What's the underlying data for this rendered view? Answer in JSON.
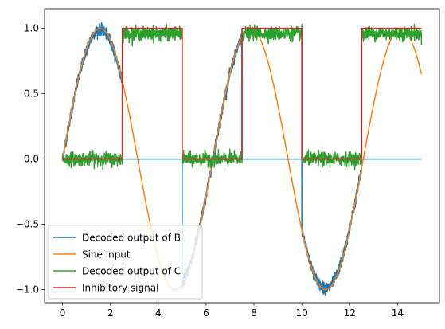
{
  "chart_data": {
    "type": "line",
    "title": "",
    "xlabel": "",
    "ylabel": "",
    "xlim": [
      -0.75,
      15.75
    ],
    "ylim": [
      -1.1,
      1.15
    ],
    "xticks": [
      0,
      2,
      4,
      6,
      8,
      10,
      12,
      14
    ],
    "yticks": [
      -1.0,
      -0.5,
      0.0,
      0.5,
      1.0
    ],
    "xtick_labels": [
      "0",
      "2",
      "4",
      "6",
      "8",
      "10",
      "12",
      "14"
    ],
    "ytick_labels": [
      "−1.0",
      "−0.5",
      "0.0",
      "0.5",
      "1.0"
    ],
    "grid": false,
    "legend_position": "lower-left",
    "series": [
      {
        "name": "Decoded output of B",
        "color": "#1f77b4",
        "description_points": {
          "x": [
            0,
            2.5,
            2.5,
            5.0,
            5.0,
            5.0,
            7.5,
            7.5,
            10.0,
            10.0,
            10.0,
            12.5,
            12.5,
            15.0
          ],
          "y": [
            "sin",
            "sin",
            0,
            0,
            -0.98,
            "sin",
            "sin",
            0,
            0,
            -0.54,
            "sin",
            "sin",
            0,
            0
          ]
        },
        "noise_std": 0.02
      },
      {
        "name": "Sine input",
        "color": "#ff7f0e",
        "x_range": [
          0,
          15
        ],
        "function": "sin(x)"
      },
      {
        "name": "Decoded output of C",
        "color": "#2ca02c",
        "segments": [
          {
            "x": [
              0,
              2.5
            ],
            "level": 0
          },
          {
            "x": [
              2.5,
              5.0
            ],
            "level": 0.96
          },
          {
            "x": [
              5.0,
              7.5
            ],
            "level": 0
          },
          {
            "x": [
              7.5,
              10.0
            ],
            "level": 0.96
          },
          {
            "x": [
              10.0,
              12.5
            ],
            "level": 0
          },
          {
            "x": [
              12.5,
              15.0
            ],
            "level": 0.96
          }
        ],
        "noise_std": 0.025
      },
      {
        "name": "Inhibitory signal",
        "color": "#d62728",
        "x": [
          0,
          2.5,
          2.5,
          5.0,
          5.0,
          7.5,
          7.5,
          10.0,
          10.0,
          12.5,
          12.5,
          15.0
        ],
        "y": [
          0,
          0,
          1,
          1,
          0,
          0,
          1,
          1,
          0,
          0,
          1,
          1
        ]
      }
    ]
  }
}
